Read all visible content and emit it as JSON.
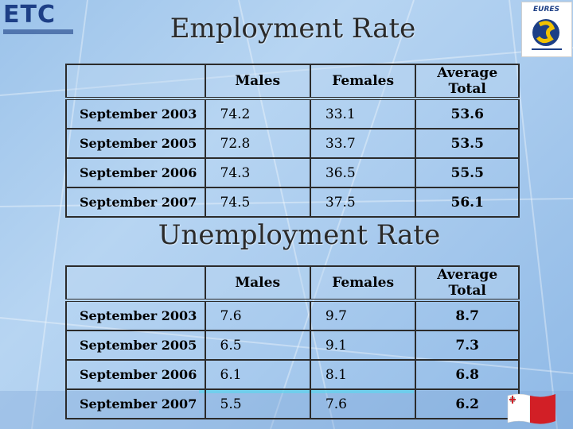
{
  "header": {
    "logo_left": "ETC",
    "logo_right": "EURES"
  },
  "employment": {
    "title": "Employment Rate",
    "columns": [
      "",
      "Males",
      "Females",
      "Average Total"
    ],
    "rows": [
      {
        "period": "September 2003",
        "males": "74.2",
        "females": "33.1",
        "average": "53.6"
      },
      {
        "period": "September 2005",
        "males": "72.8",
        "females": "33.7",
        "average": "53.5"
      },
      {
        "period": "September 2006",
        "males": "74.3",
        "females": "36.5",
        "average": "55.5"
      },
      {
        "period": "September 2007",
        "males": "74.5",
        "females": "37.5",
        "average": "56.1"
      }
    ]
  },
  "unemployment": {
    "title": "Unemployment Rate",
    "columns": [
      "",
      "Males",
      "Females",
      "Average Total"
    ],
    "rows": [
      {
        "period": "September 2003",
        "males": "7.6",
        "females": "9.7",
        "average": "8.7"
      },
      {
        "period": "September 2005",
        "males": "6.5",
        "females": "9.1",
        "average": "7.3"
      },
      {
        "period": "September 2006",
        "males": "6.1",
        "females": "8.1",
        "average": "6.8"
      },
      {
        "period": "September 2007",
        "males": "5.5",
        "females": "7.6",
        "average": "6.2"
      }
    ]
  },
  "colors": {
    "background": "#a9cbee",
    "border": "#2b2b2b",
    "logo_blue": "#1d3f86",
    "flag_red": "#d21f26"
  },
  "icons": [
    "etc-logo-icon",
    "eures-logo-icon",
    "malta-flag-icon"
  ]
}
